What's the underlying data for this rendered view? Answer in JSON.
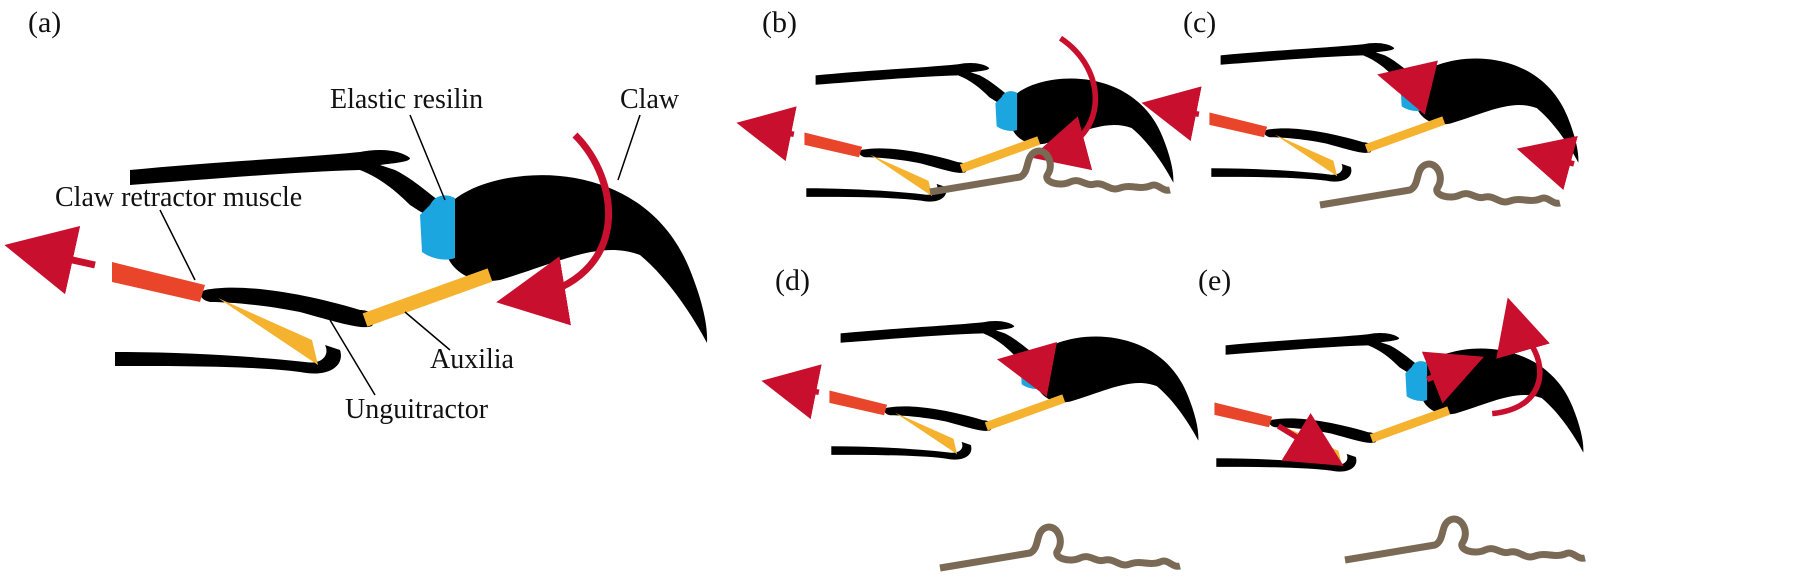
{
  "panels": [
    {
      "label": "(a)"
    },
    {
      "label": "(b)"
    },
    {
      "label": "(c)"
    },
    {
      "label": "(d)"
    },
    {
      "label": "(e)"
    }
  ],
  "annotations": {
    "elastic_resilin": "Elastic resilin",
    "claw": "Claw",
    "claw_retractor_muscle": "Claw retractor muscle",
    "auxilia": "Auxilia",
    "unguitractor": "Unguitractor"
  },
  "colors": {
    "structure": "#000000",
    "resilin": "#1ca6e0",
    "auxilia": "#f5b22e",
    "muscle": "#e8452a",
    "arrow": "#c8102e",
    "substrate": "#7a6a55"
  }
}
